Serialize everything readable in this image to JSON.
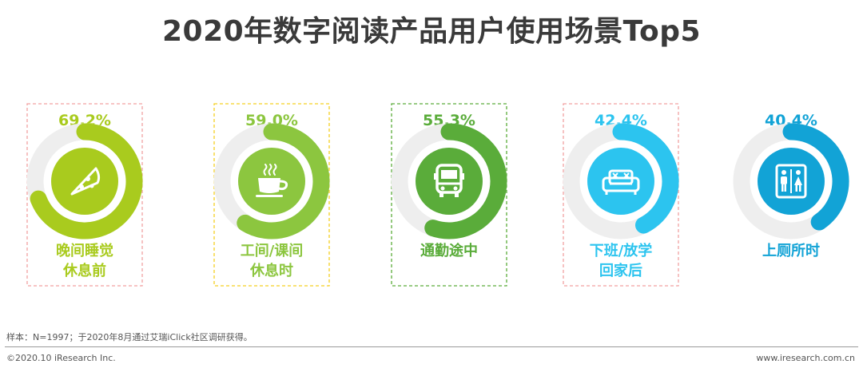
{
  "title": "2020年数字阅读产品用户使用场景Top5",
  "footer": {
    "note": "样本：N=1997；于2020年8月通过艾瑞iClick社区调研获得。",
    "copyright": "©2020.10 iResearch Inc.",
    "url": "www.iresearch.com.cn"
  },
  "chart_data": {
    "type": "donut",
    "title": "2020年数字阅读产品用户使用场景Top5",
    "max": 100,
    "items": [
      {
        "label_lines": [
          "晚间睡觉",
          "休息前"
        ],
        "value": 69.2,
        "value_label": "69.2%",
        "color": "#a9cb1e",
        "icon": "pizza-icon",
        "border": "#f2a0a0"
      },
      {
        "label_lines": [
          "工间/课间",
          "休息时"
        ],
        "value": 59.0,
        "value_label": "59.0%",
        "color": "#8cc63f",
        "icon": "coffee-cup-icon",
        "border": "#f5d020"
      },
      {
        "label_lines": [
          "通勤途中"
        ],
        "value": 55.3,
        "value_label": "55.3%",
        "color": "#5aac3a",
        "icon": "bus-icon",
        "border": "#5aac3a"
      },
      {
        "label_lines": [
          "下班/放学",
          "回家后"
        ],
        "value": 42.4,
        "value_label": "42.4%",
        "color": "#2cc4ef",
        "icon": "sofa-icon",
        "border": "#f2a0a0"
      },
      {
        "label_lines": [
          "上厕所时"
        ],
        "value": 40.4,
        "value_label": "40.4%",
        "color": "#12a3d6",
        "icon": "restroom-icon",
        "border": null
      }
    ]
  }
}
